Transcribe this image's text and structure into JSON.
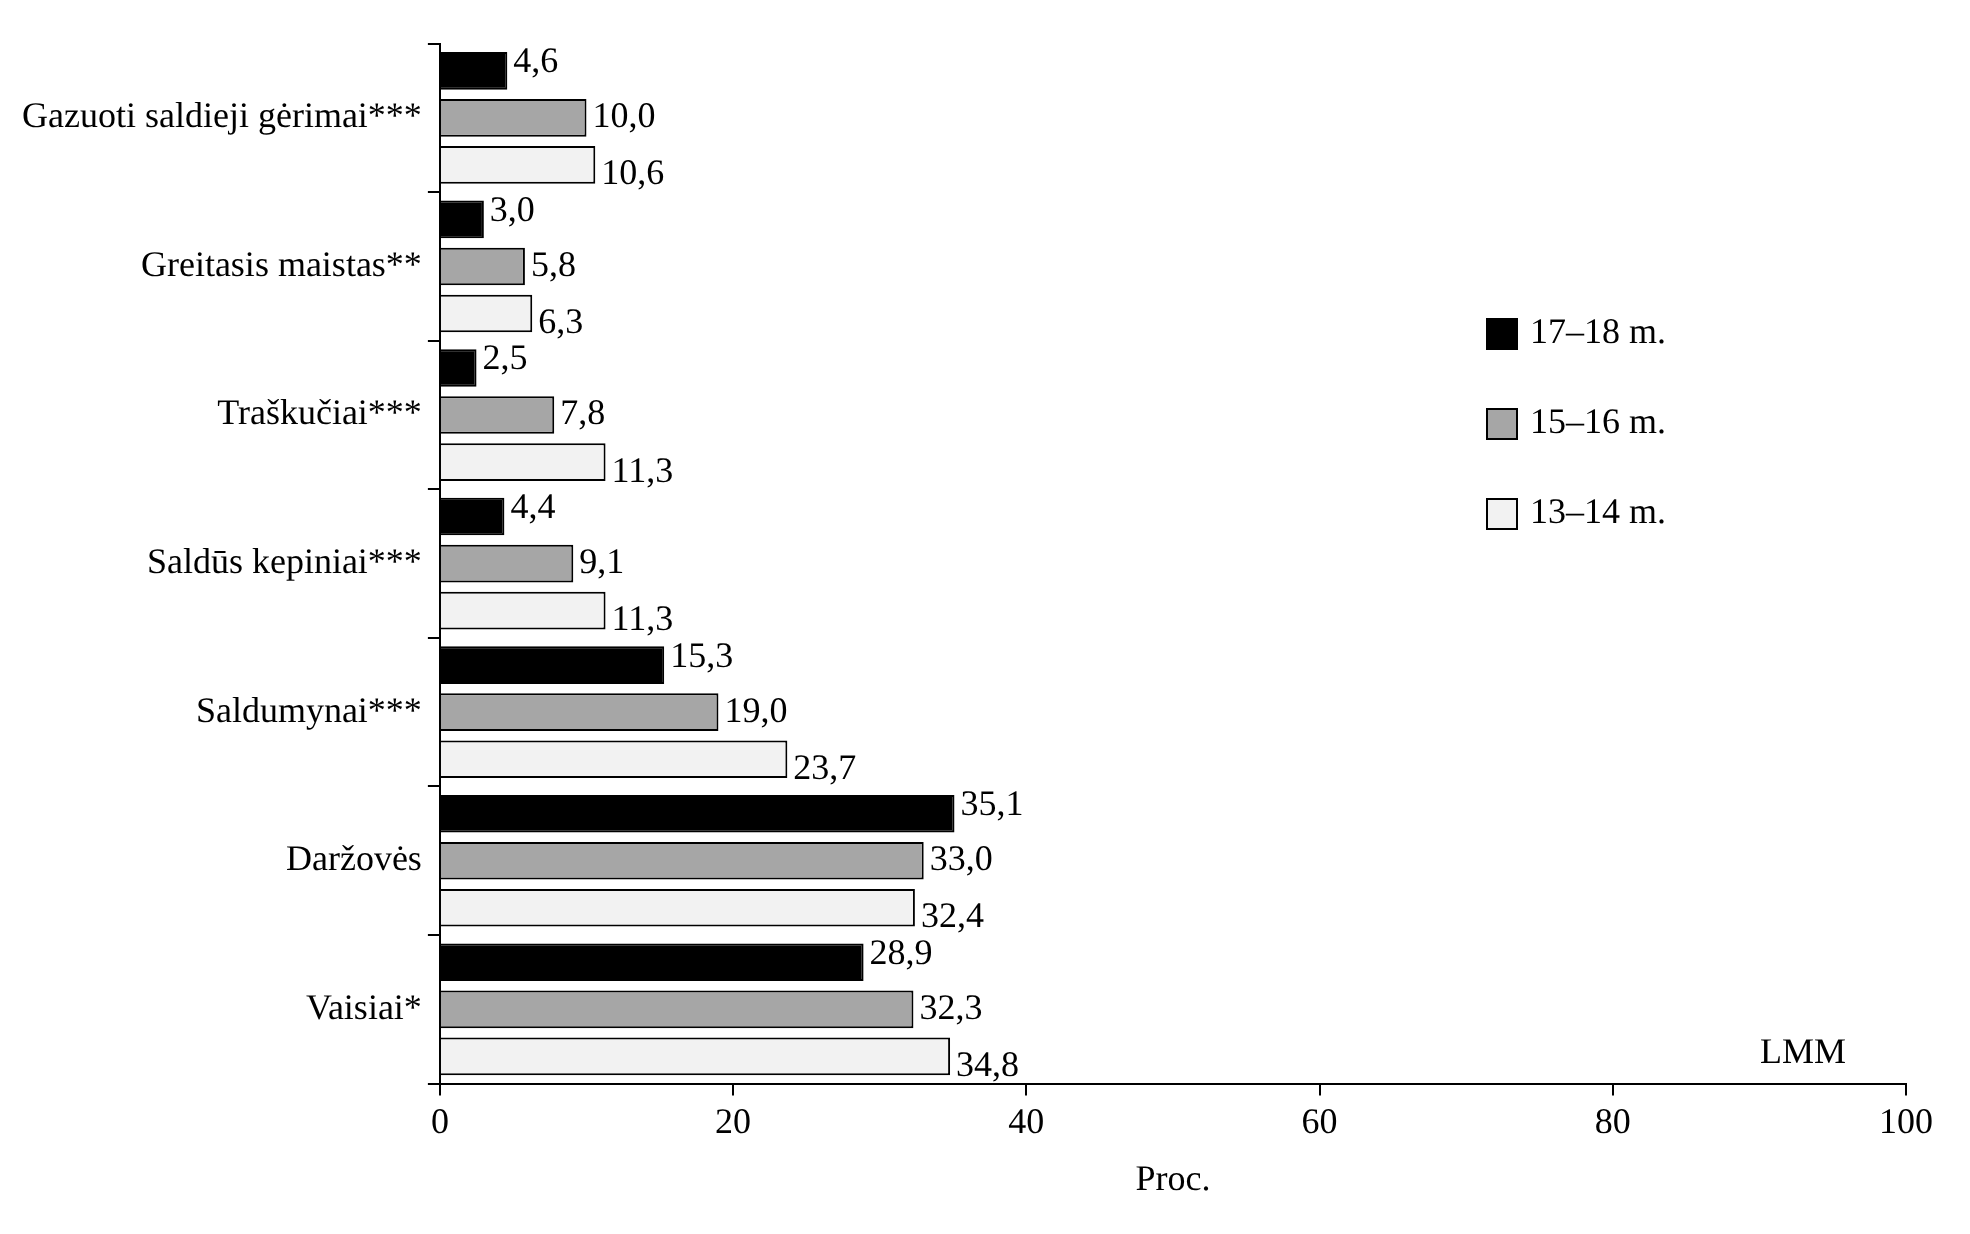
{
  "chart_data": {
    "type": "bar",
    "orientation": "horizontal",
    "xlabel": "Proc.",
    "categories": [
      "Gazuoti saldieji gėrimai***",
      "Greitasis maistas**",
      "Traškučiai***",
      "Saldūs kepiniai***",
      "Saldumynai***",
      "Daržovės",
      "Vaisiai*"
    ],
    "series": [
      {
        "name": "17–18 m.",
        "color": "#000000",
        "values": [
          4.6,
          3.0,
          2.5,
          4.4,
          15.3,
          35.1,
          28.9
        ],
        "value_labels": [
          "4,6",
          "3,0",
          "2,5",
          "4,4",
          "15,3",
          "35,1",
          "28,9"
        ]
      },
      {
        "name": "15–16 m.",
        "color": "#a6a6a6",
        "values": [
          10.0,
          5.8,
          7.8,
          9.1,
          19.0,
          33.0,
          32.3
        ],
        "value_labels": [
          "10,0",
          "5,8",
          "7,8",
          "9,1",
          "19,0",
          "33,0",
          "32,3"
        ]
      },
      {
        "name": "13–14 m.",
        "color": "#f2f2f2",
        "values": [
          10.6,
          6.3,
          11.3,
          11.3,
          23.7,
          32.4,
          34.8
        ],
        "value_labels": [
          "10,6",
          "6,3",
          "11,3",
          "11,3",
          "23,7",
          "32,4",
          "34,8"
        ]
      }
    ],
    "xlim": [
      0,
      100
    ],
    "xticks": [
      0,
      20,
      40,
      60,
      80,
      100
    ],
    "grid": false,
    "legend": "right",
    "annotations": [
      "LMM"
    ]
  }
}
